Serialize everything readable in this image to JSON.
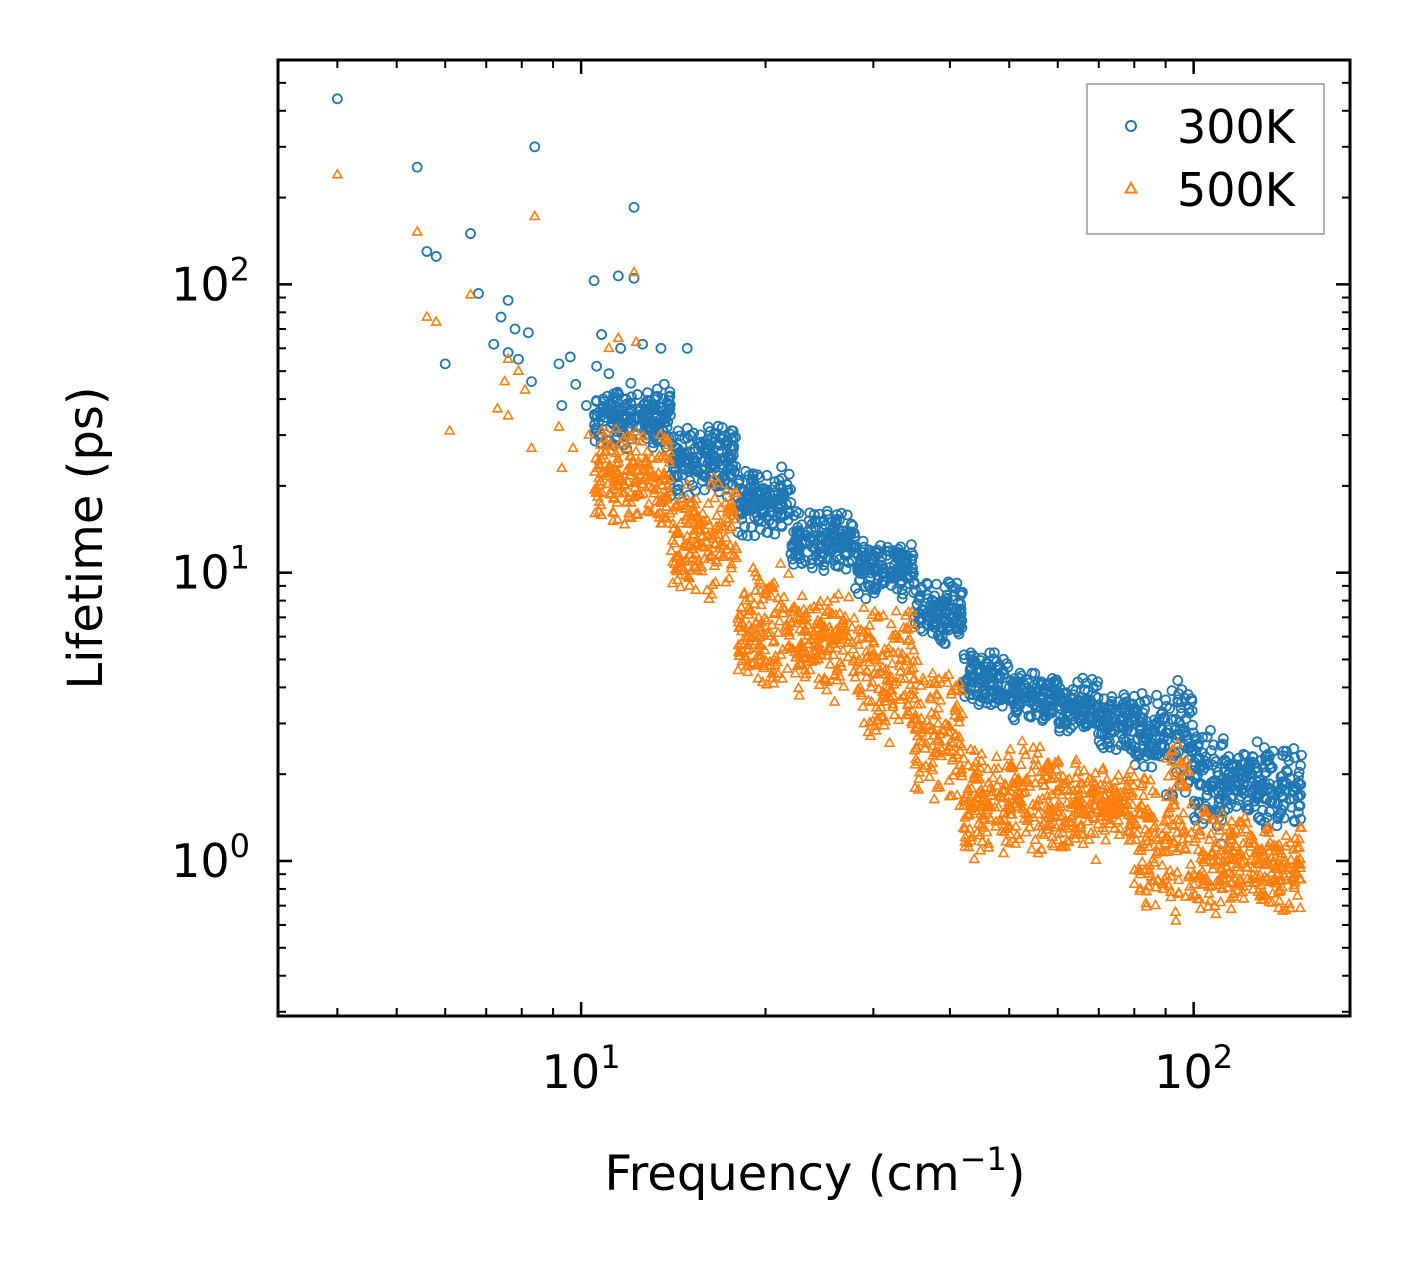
{
  "chart_data": {
    "type": "scatter",
    "title": "",
    "xlabel": "Frequency (cm",
    "xlabel_sup": "−1",
    "xlabel_close": ")",
    "ylabel": "Lifetime (ps)",
    "xscale": "log",
    "yscale": "log",
    "xlim": [
      3.2,
      180
    ],
    "ylim": [
      0.29,
      600
    ],
    "x_ticks": [
      {
        "value": 10,
        "base": "10",
        "exp": "1"
      },
      {
        "value": 100,
        "base": "10",
        "exp": "2"
      }
    ],
    "y_ticks": [
      {
        "value": 1,
        "base": "10",
        "exp": "0"
      },
      {
        "value": 10,
        "base": "10",
        "exp": "1"
      },
      {
        "value": 100,
        "base": "10",
        "exp": "2"
      }
    ],
    "legend_position": "top-right",
    "series": [
      {
        "name": "300K",
        "color": "#1f77b4",
        "marker": "circle",
        "points": [
          [
            4.0,
            440
          ],
          [
            5.4,
            255
          ],
          [
            8.4,
            300
          ],
          [
            12.2,
            185
          ],
          [
            5.6,
            130
          ],
          [
            5.8,
            125
          ],
          [
            6.6,
            150
          ],
          [
            6.8,
            93
          ],
          [
            10.5,
            103
          ],
          [
            11.5,
            107
          ],
          [
            12.2,
            105
          ],
          [
            6.0,
            53
          ],
          [
            7.6,
            88
          ],
          [
            7.4,
            77
          ],
          [
            7.8,
            70
          ],
          [
            8.2,
            68
          ],
          [
            7.2,
            62
          ],
          [
            7.6,
            58
          ],
          [
            7.9,
            55
          ],
          [
            8.3,
            46
          ],
          [
            9.2,
            53
          ],
          [
            9.6,
            56
          ],
          [
            9.3,
            38
          ],
          [
            9.8,
            45
          ],
          [
            10.2,
            38
          ],
          [
            10.8,
            67
          ],
          [
            11.6,
            60
          ],
          [
            12.6,
            62
          ],
          [
            13.5,
            60
          ],
          [
            14.9,
            60
          ],
          [
            10.6,
            52
          ],
          [
            11.1,
            49
          ]
        ],
        "bands": [
          {
            "x0": 10.5,
            "x1": 14,
            "y0": 26,
            "y1": 46
          },
          {
            "x0": 14,
            "x1": 18,
            "y0": 18,
            "y1": 34
          },
          {
            "x0": 18,
            "x1": 22,
            "y0": 13,
            "y1": 24
          },
          {
            "x0": 22,
            "x1": 28,
            "y0": 10,
            "y1": 17
          },
          {
            "x0": 28,
            "x1": 35,
            "y0": 8,
            "y1": 13
          },
          {
            "x0": 35,
            "x1": 42,
            "y0": 5.5,
            "y1": 9.5
          },
          {
            "x0": 42,
            "x1": 50,
            "y0": 3.3,
            "y1": 5.5
          },
          {
            "x0": 50,
            "x1": 60,
            "y0": 3.0,
            "y1": 4.6
          },
          {
            "x0": 60,
            "x1": 70,
            "y0": 2.7,
            "y1": 4.4
          },
          {
            "x0": 70,
            "x1": 80,
            "y0": 2.3,
            "y1": 4.0
          },
          {
            "x0": 80,
            "x1": 90,
            "y0": 2.0,
            "y1": 4.0
          },
          {
            "x0": 90,
            "x1": 100,
            "y0": 1.5,
            "y1": 5.0
          },
          {
            "x0": 100,
            "x1": 112,
            "y0": 1.1,
            "y1": 3.0
          },
          {
            "x0": 112,
            "x1": 125,
            "y0": 1.4,
            "y1": 2.6
          },
          {
            "x0": 125,
            "x1": 150,
            "y0": 1.2,
            "y1": 2.7
          }
        ]
      },
      {
        "name": "500K",
        "color": "#ff7f0e",
        "marker": "triangle",
        "points": [
          [
            4.0,
            240
          ],
          [
            5.4,
            152
          ],
          [
            8.4,
            172
          ],
          [
            12.2,
            110
          ],
          [
            5.6,
            77
          ],
          [
            5.8,
            74
          ],
          [
            6.6,
            92
          ],
          [
            6.1,
            31
          ],
          [
            7.6,
            55
          ],
          [
            7.3,
            37
          ],
          [
            7.6,
            35
          ],
          [
            7.5,
            46
          ],
          [
            7.9,
            50
          ],
          [
            8.1,
            43
          ],
          [
            8.3,
            27
          ],
          [
            9.2,
            32
          ],
          [
            9.7,
            27
          ],
          [
            9.3,
            23
          ],
          [
            10.3,
            30
          ],
          [
            10.6,
            19
          ],
          [
            11.5,
            65
          ],
          [
            12.3,
            63
          ],
          [
            11.1,
            60
          ],
          [
            10.8,
            31
          ]
        ],
        "bands": [
          {
            "x0": 10.5,
            "x1": 14,
            "y0": 14,
            "y1": 32
          },
          {
            "x0": 14,
            "x1": 18,
            "y0": 8,
            "y1": 22
          },
          {
            "x0": 18,
            "x1": 22,
            "y0": 3.5,
            "y1": 11
          },
          {
            "x0": 22,
            "x1": 28,
            "y0": 3.5,
            "y1": 9
          },
          {
            "x0": 28,
            "x1": 35,
            "y0": 2.5,
            "y1": 8
          },
          {
            "x0": 35,
            "x1": 42,
            "y0": 1.5,
            "y1": 5
          },
          {
            "x0": 42,
            "x1": 50,
            "y0": 0.95,
            "y1": 2.6
          },
          {
            "x0": 50,
            "x1": 60,
            "y0": 1.0,
            "y1": 2.7
          },
          {
            "x0": 60,
            "x1": 70,
            "y0": 0.95,
            "y1": 2.4
          },
          {
            "x0": 70,
            "x1": 80,
            "y0": 1.1,
            "y1": 2.2
          },
          {
            "x0": 80,
            "x1": 90,
            "y0": 0.6,
            "y1": 2.2
          },
          {
            "x0": 90,
            "x1": 100,
            "y0": 0.55,
            "y1": 3.2
          },
          {
            "x0": 100,
            "x1": 112,
            "y0": 0.55,
            "y1": 1.6
          },
          {
            "x0": 112,
            "x1": 125,
            "y0": 0.65,
            "y1": 1.6
          },
          {
            "x0": 125,
            "x1": 150,
            "y0": 0.62,
            "y1": 1.4
          }
        ]
      }
    ]
  }
}
